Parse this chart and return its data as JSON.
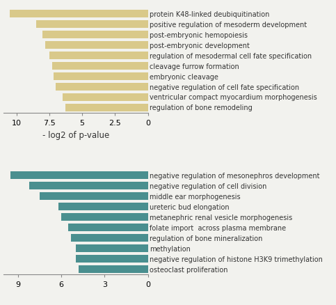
{
  "top": {
    "labels": [
      "protein K48-linked deubiquitination",
      "positive regulation of mesoderm development",
      "post-embryonic hemopoiesis",
      "post-embryonic development",
      "regulation of mesodermal cell fate specification",
      "cleavage furrow formation",
      "embryonic cleavage",
      "negative regulation of cell fate specification",
      "ventricular compact myocardium morphogenesis",
      "regulation of bone remodeling"
    ],
    "values": [
      10.5,
      8.5,
      8.0,
      7.8,
      7.5,
      7.3,
      7.2,
      7.0,
      6.5,
      6.3
    ],
    "color": "#d9c98a",
    "xlabel": "- log2 of p-value",
    "xlim_max": 11,
    "xticks": [
      10,
      7.5,
      5,
      2.5,
      0
    ],
    "xticklabels": [
      "10",
      "7.5",
      "5",
      "2.5",
      "0"
    ]
  },
  "bottom": {
    "labels": [
      "negative regulation of mesonephros development",
      "negative regulation of cell division",
      "middle ear morphogenesis",
      "ureteric bud elongation",
      "metanephric renal vesicle morphogenesis",
      "folate import  across plasma membrane",
      "regulation of bone mineralization",
      "methylation",
      "negative regulation of histone H3K9 trimethylation",
      "osteoclast proliferation"
    ],
    "values": [
      9.5,
      8.2,
      7.5,
      6.2,
      6.0,
      5.5,
      5.3,
      5.0,
      5.0,
      4.8
    ],
    "color": "#4a8f8f",
    "xlabel": "",
    "xlim_max": 10,
    "xticks": [
      9,
      6,
      3,
      0
    ],
    "xticklabels": [
      "9",
      "6",
      "3",
      "0"
    ]
  },
  "bg_color": "#f2f2ee",
  "bar_height": 0.72,
  "label_fontsize": 7.0,
  "tick_fontsize": 8,
  "xlabel_fontsize": 8.5
}
